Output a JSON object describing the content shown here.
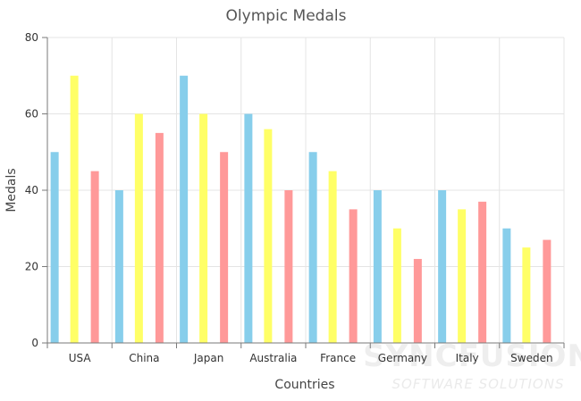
{
  "chart_data": {
    "type": "bar",
    "title": "Olympic Medals",
    "xlabel": "Countries",
    "ylabel": "Medals",
    "categories": [
      "USA",
      "China",
      "Japan",
      "Australia",
      "France",
      "Germany",
      "Italy",
      "Sweden"
    ],
    "series": [
      {
        "values": [
          50,
          40,
          70,
          60,
          50,
          40,
          40,
          30
        ],
        "color": "#87CEEB"
      },
      {
        "values": [
          70,
          60,
          60,
          56,
          45,
          30,
          35,
          25
        ],
        "color": "#FFFF66"
      },
      {
        "values": [
          45,
          55,
          50,
          40,
          35,
          22,
          37,
          27
        ],
        "color": "#FF9999"
      }
    ],
    "ylim": [
      0,
      80
    ],
    "yticks": [
      0,
      20,
      40,
      60,
      80
    ],
    "grid": true,
    "legend": "none"
  },
  "watermark": {
    "logo_text": "SYNCFUSION",
    "text": "SOFTWARE SOLUTIONS"
  }
}
